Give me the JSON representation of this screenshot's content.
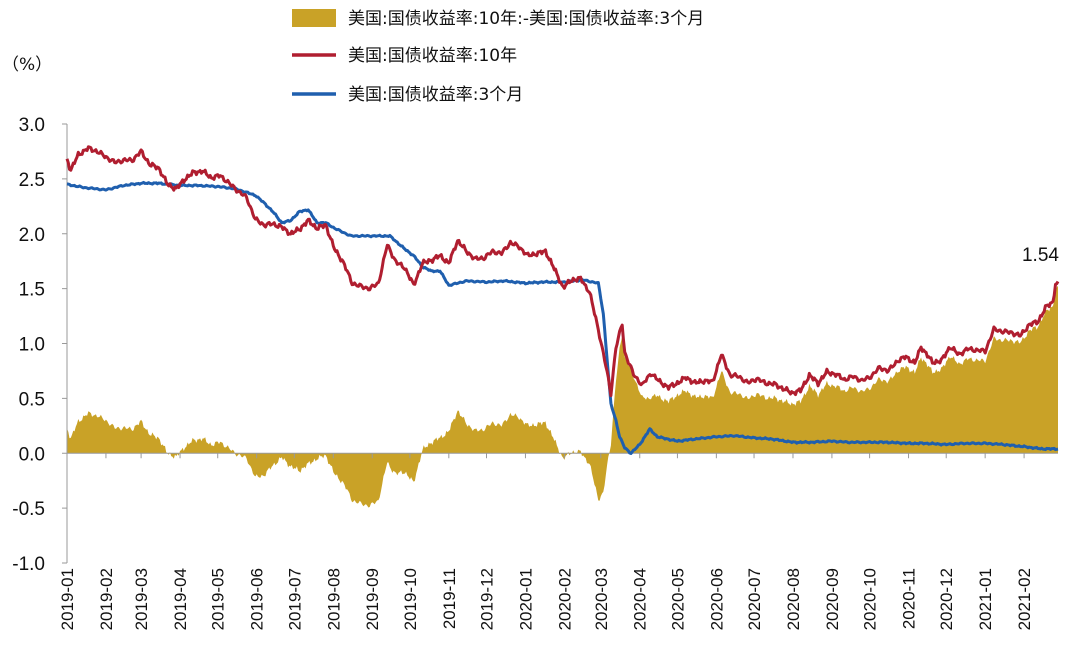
{
  "chart_data": {
    "type": "area+line",
    "unit_label": "（%）",
    "ylim": [
      -1.0,
      3.0
    ],
    "y_ticks": [
      "3.0",
      "2.5",
      "2.0",
      "1.5",
      "1.0",
      "0.5",
      "0.0",
      "-0.5",
      "-1.0"
    ],
    "y_tick_values": [
      3.0,
      2.5,
      2.0,
      1.5,
      1.0,
      0.5,
      0.0,
      -0.5,
      -1.0
    ],
    "x_ticks": [
      "2019-01",
      "2019-02",
      "2019-03",
      "2019-04",
      "2019-05",
      "2019-06",
      "2019-07",
      "2019-08",
      "2019-09",
      "2019-10",
      "2019-11",
      "2019-12",
      "2020-01",
      "2020-02",
      "2020-03",
      "2020-04",
      "2020-05",
      "2020-06",
      "2020-07",
      "2020-08",
      "2020-09",
      "2020-10",
      "2020-11",
      "2020-12",
      "2021-01",
      "2021-02"
    ],
    "x_end": "2021-02-28",
    "legend_position": "top",
    "grid": false,
    "annotation": {
      "text": "1.54",
      "x": "2021-02-26",
      "y": 1.54
    },
    "series": [
      {
        "name": "美国:国债收益率:10年:-美国:国债收益率:3个月",
        "kind": "area",
        "color": "#c9a227",
        "derived_from": "10y_minus_3m"
      },
      {
        "name": "美国:国债收益率:10年",
        "kind": "line",
        "color": "#b01e30",
        "points": [
          [
            "2019-01-01",
            2.68
          ],
          [
            "2019-01-04",
            2.58
          ],
          [
            "2019-01-10",
            2.72
          ],
          [
            "2019-01-18",
            2.78
          ],
          [
            "2019-01-25",
            2.75
          ],
          [
            "2019-02-01",
            2.7
          ],
          [
            "2019-02-08",
            2.65
          ],
          [
            "2019-02-15",
            2.67
          ],
          [
            "2019-02-22",
            2.67
          ],
          [
            "2019-03-01",
            2.75
          ],
          [
            "2019-03-08",
            2.63
          ],
          [
            "2019-03-15",
            2.6
          ],
          [
            "2019-03-22",
            2.45
          ],
          [
            "2019-03-29",
            2.41
          ],
          [
            "2019-04-05",
            2.5
          ],
          [
            "2019-04-12",
            2.56
          ],
          [
            "2019-04-19",
            2.57
          ],
          [
            "2019-04-26",
            2.51
          ],
          [
            "2019-05-03",
            2.53
          ],
          [
            "2019-05-10",
            2.46
          ],
          [
            "2019-05-17",
            2.39
          ],
          [
            "2019-05-24",
            2.33
          ],
          [
            "2019-05-31",
            2.13
          ],
          [
            "2019-06-07",
            2.08
          ],
          [
            "2019-06-14",
            2.09
          ],
          [
            "2019-06-21",
            2.06
          ],
          [
            "2019-06-28",
            2.0
          ],
          [
            "2019-07-05",
            2.04
          ],
          [
            "2019-07-12",
            2.12
          ],
          [
            "2019-07-19",
            2.05
          ],
          [
            "2019-07-26",
            2.08
          ],
          [
            "2019-08-02",
            1.86
          ],
          [
            "2019-08-09",
            1.74
          ],
          [
            "2019-08-16",
            1.55
          ],
          [
            "2019-08-23",
            1.52
          ],
          [
            "2019-08-30",
            1.5
          ],
          [
            "2019-09-06",
            1.55
          ],
          [
            "2019-09-13",
            1.9
          ],
          [
            "2019-09-20",
            1.74
          ],
          [
            "2019-09-27",
            1.69
          ],
          [
            "2019-10-04",
            1.53
          ],
          [
            "2019-10-11",
            1.73
          ],
          [
            "2019-10-18",
            1.76
          ],
          [
            "2019-10-25",
            1.8
          ],
          [
            "2019-11-01",
            1.73
          ],
          [
            "2019-11-08",
            1.94
          ],
          [
            "2019-11-15",
            1.84
          ],
          [
            "2019-11-22",
            1.77
          ],
          [
            "2019-11-29",
            1.78
          ],
          [
            "2019-12-06",
            1.84
          ],
          [
            "2019-12-13",
            1.82
          ],
          [
            "2019-12-20",
            1.92
          ],
          [
            "2019-12-27",
            1.88
          ],
          [
            "2020-01-03",
            1.8
          ],
          [
            "2020-01-10",
            1.82
          ],
          [
            "2020-01-17",
            1.84
          ],
          [
            "2020-01-24",
            1.68
          ],
          [
            "2020-01-31",
            1.51
          ],
          [
            "2020-02-07",
            1.58
          ],
          [
            "2020-02-14",
            1.59
          ],
          [
            "2020-02-21",
            1.47
          ],
          [
            "2020-02-28",
            1.13
          ],
          [
            "2020-03-06",
            0.74
          ],
          [
            "2020-03-09",
            0.54
          ],
          [
            "2020-03-13",
            0.96
          ],
          [
            "2020-03-18",
            1.18
          ],
          [
            "2020-03-20",
            0.92
          ],
          [
            "2020-03-27",
            0.72
          ],
          [
            "2020-04-03",
            0.62
          ],
          [
            "2020-04-10",
            0.73
          ],
          [
            "2020-04-17",
            0.65
          ],
          [
            "2020-04-24",
            0.6
          ],
          [
            "2020-05-01",
            0.64
          ],
          [
            "2020-05-08",
            0.69
          ],
          [
            "2020-05-15",
            0.64
          ],
          [
            "2020-05-22",
            0.66
          ],
          [
            "2020-05-29",
            0.65
          ],
          [
            "2020-06-05",
            0.9
          ],
          [
            "2020-06-12",
            0.71
          ],
          [
            "2020-06-19",
            0.7
          ],
          [
            "2020-06-26",
            0.64
          ],
          [
            "2020-07-03",
            0.68
          ],
          [
            "2020-07-10",
            0.64
          ],
          [
            "2020-07-17",
            0.63
          ],
          [
            "2020-07-24",
            0.59
          ],
          [
            "2020-07-31",
            0.55
          ],
          [
            "2020-08-07",
            0.57
          ],
          [
            "2020-08-14",
            0.71
          ],
          [
            "2020-08-21",
            0.64
          ],
          [
            "2020-08-28",
            0.74
          ],
          [
            "2020-09-04",
            0.72
          ],
          [
            "2020-09-11",
            0.67
          ],
          [
            "2020-09-18",
            0.7
          ],
          [
            "2020-09-25",
            0.66
          ],
          [
            "2020-10-02",
            0.7
          ],
          [
            "2020-10-09",
            0.78
          ],
          [
            "2020-10-16",
            0.75
          ],
          [
            "2020-10-23",
            0.84
          ],
          [
            "2020-10-30",
            0.88
          ],
          [
            "2020-11-06",
            0.82
          ],
          [
            "2020-11-11",
            0.97
          ],
          [
            "2020-11-20",
            0.83
          ],
          [
            "2020-11-27",
            0.84
          ],
          [
            "2020-12-04",
            0.97
          ],
          [
            "2020-12-11",
            0.9
          ],
          [
            "2020-12-18",
            0.95
          ],
          [
            "2020-12-25",
            0.94
          ],
          [
            "2021-01-01",
            0.93
          ],
          [
            "2021-01-08",
            1.13
          ],
          [
            "2021-01-15",
            1.11
          ],
          [
            "2021-01-22",
            1.1
          ],
          [
            "2021-01-29",
            1.07
          ],
          [
            "2021-02-05",
            1.17
          ],
          [
            "2021-02-12",
            1.2
          ],
          [
            "2021-02-19",
            1.34
          ],
          [
            "2021-02-24",
            1.38
          ],
          [
            "2021-02-26",
            1.54
          ]
        ]
      },
      {
        "name": "美国:国债收益率:3个月",
        "kind": "line",
        "color": "#1f5fae",
        "points": [
          [
            "2019-01-01",
            2.45
          ],
          [
            "2019-01-15",
            2.42
          ],
          [
            "2019-02-01",
            2.4
          ],
          [
            "2019-02-15",
            2.44
          ],
          [
            "2019-03-01",
            2.46
          ],
          [
            "2019-03-15",
            2.46
          ],
          [
            "2019-04-01",
            2.44
          ],
          [
            "2019-04-15",
            2.44
          ],
          [
            "2019-05-01",
            2.43
          ],
          [
            "2019-05-15",
            2.41
          ],
          [
            "2019-05-31",
            2.35
          ],
          [
            "2019-06-07",
            2.28
          ],
          [
            "2019-06-14",
            2.2
          ],
          [
            "2019-06-21",
            2.1
          ],
          [
            "2019-06-28",
            2.12
          ],
          [
            "2019-07-05",
            2.2
          ],
          [
            "2019-07-12",
            2.22
          ],
          [
            "2019-07-19",
            2.1
          ],
          [
            "2019-07-26",
            2.1
          ],
          [
            "2019-08-02",
            2.05
          ],
          [
            "2019-08-15",
            1.98
          ],
          [
            "2019-09-01",
            1.98
          ],
          [
            "2019-09-15",
            1.98
          ],
          [
            "2019-09-27",
            1.86
          ],
          [
            "2019-10-04",
            1.8
          ],
          [
            "2019-10-11",
            1.7
          ],
          [
            "2019-10-18",
            1.66
          ],
          [
            "2019-10-25",
            1.66
          ],
          [
            "2019-11-01",
            1.53
          ],
          [
            "2019-11-15",
            1.57
          ],
          [
            "2019-12-01",
            1.56
          ],
          [
            "2019-12-15",
            1.57
          ],
          [
            "2020-01-01",
            1.55
          ],
          [
            "2020-01-15",
            1.56
          ],
          [
            "2020-02-01",
            1.56
          ],
          [
            "2020-02-15",
            1.58
          ],
          [
            "2020-02-28",
            1.55
          ],
          [
            "2020-03-03",
            1.27
          ],
          [
            "2020-03-09",
            0.45
          ],
          [
            "2020-03-13",
            0.3
          ],
          [
            "2020-03-16",
            0.15
          ],
          [
            "2020-03-20",
            0.05
          ],
          [
            "2020-03-25",
            0.0
          ],
          [
            "2020-04-01",
            0.08
          ],
          [
            "2020-04-09",
            0.22
          ],
          [
            "2020-04-15",
            0.15
          ],
          [
            "2020-05-01",
            0.11
          ],
          [
            "2020-05-15",
            0.13
          ],
          [
            "2020-06-01",
            0.15
          ],
          [
            "2020-06-15",
            0.16
          ],
          [
            "2020-07-01",
            0.14
          ],
          [
            "2020-07-15",
            0.13
          ],
          [
            "2020-08-01",
            0.1
          ],
          [
            "2020-08-15",
            0.1
          ],
          [
            "2020-09-01",
            0.11
          ],
          [
            "2020-09-15",
            0.1
          ],
          [
            "2020-10-01",
            0.1
          ],
          [
            "2020-10-15",
            0.1
          ],
          [
            "2020-11-01",
            0.09
          ],
          [
            "2020-11-15",
            0.09
          ],
          [
            "2020-12-01",
            0.08
          ],
          [
            "2020-12-15",
            0.09
          ],
          [
            "2021-01-01",
            0.09
          ],
          [
            "2021-01-15",
            0.08
          ],
          [
            "2021-02-01",
            0.06
          ],
          [
            "2021-02-15",
            0.04
          ],
          [
            "2021-02-26",
            0.04
          ]
        ]
      }
    ]
  }
}
